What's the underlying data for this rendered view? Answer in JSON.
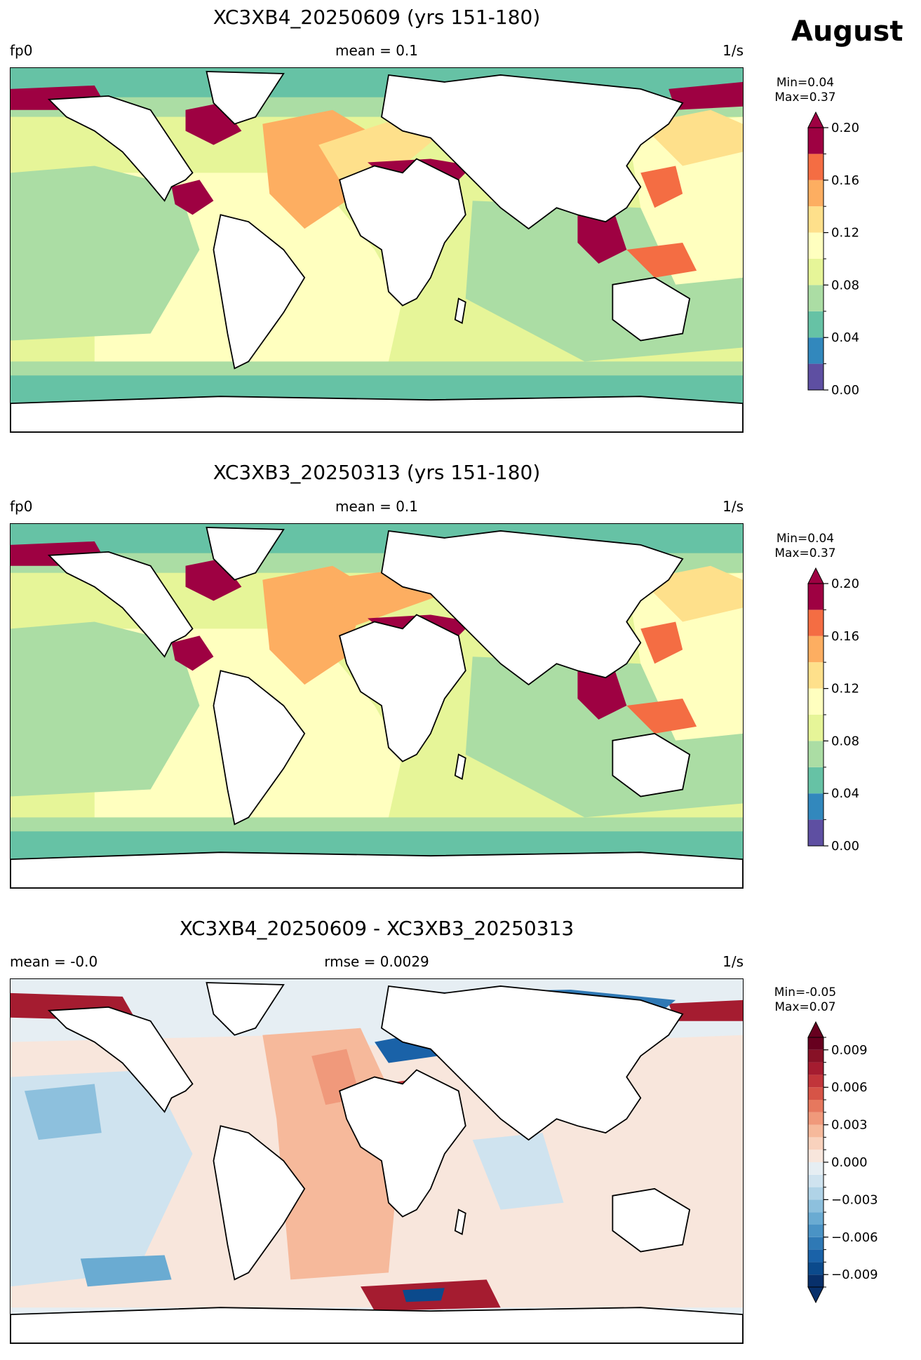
{
  "month": "August",
  "panels": [
    {
      "title": "XC3XB4_20250609 (yrs 151-180)",
      "left_label": "fp0",
      "center_label": "mean = 0.1",
      "right_label": "1/s",
      "min_label": "Min=0.04",
      "max_label": "Max=0.37",
      "colorbar": {
        "ticks": [
          "0.00",
          "0.04",
          "0.08",
          "0.12",
          "0.16",
          "0.20"
        ],
        "levels": [
          0.0,
          0.02,
          0.04,
          0.06,
          0.08,
          0.1,
          0.12,
          0.14,
          0.16,
          0.18,
          0.2
        ],
        "colors": [
          "#5e4fa2",
          "#3288bd",
          "#66c2a5",
          "#abdda4",
          "#e6f598",
          "#ffffbf",
          "#fee08b",
          "#fdae61",
          "#f46d43",
          "#9e0142"
        ],
        "extend": "max"
      }
    },
    {
      "title": "XC3XB3_20250313 (yrs 151-180)",
      "left_label": "fp0",
      "center_label": "mean = 0.1",
      "right_label": "1/s",
      "min_label": "Min=0.04",
      "max_label": "Max=0.37",
      "colorbar": {
        "ticks": [
          "0.00",
          "0.04",
          "0.08",
          "0.12",
          "0.16",
          "0.20"
        ],
        "levels": [
          0.0,
          0.02,
          0.04,
          0.06,
          0.08,
          0.1,
          0.12,
          0.14,
          0.16,
          0.18,
          0.2
        ],
        "colors": [
          "#5e4fa2",
          "#3288bd",
          "#66c2a5",
          "#abdda4",
          "#e6f598",
          "#ffffbf",
          "#fee08b",
          "#fdae61",
          "#f46d43",
          "#9e0142"
        ],
        "extend": "max"
      }
    },
    {
      "title": "XC3XB4_20250609 - XC3XB3_20250313",
      "left_label": "mean = -0.0",
      "center_label": "rmse = 0.0029",
      "right_label": "1/s",
      "min_label": "Min=-0.05",
      "max_label": "Max=0.07",
      "colorbar": {
        "ticks": [
          "−0.009",
          "−0.006",
          "−0.003",
          "0.000",
          "0.003",
          "0.006",
          "0.009"
        ],
        "tick_values": [
          -0.009,
          -0.006,
          -0.003,
          0.0,
          0.003,
          0.006,
          0.009
        ],
        "levels": [
          -0.01,
          -0.009,
          -0.008,
          -0.007,
          -0.006,
          -0.005,
          -0.004,
          -0.003,
          -0.002,
          -0.001,
          0.0,
          0.001,
          0.002,
          0.003,
          0.004,
          0.005,
          0.006,
          0.007,
          0.008,
          0.009,
          0.01
        ],
        "colors": [
          "#08306b",
          "#0b4a8c",
          "#1a62a8",
          "#2f79b5",
          "#4a93c5",
          "#6aabd2",
          "#8dc0dd",
          "#b0d3e7",
          "#cfe3ef",
          "#e6eef3",
          "#f8e6dc",
          "#f9d2bd",
          "#f6b99b",
          "#f0997b",
          "#e6785e",
          "#d65447",
          "#c1353a",
          "#a51c30",
          "#871126",
          "#67001f"
        ],
        "extend": "both"
      }
    }
  ]
}
